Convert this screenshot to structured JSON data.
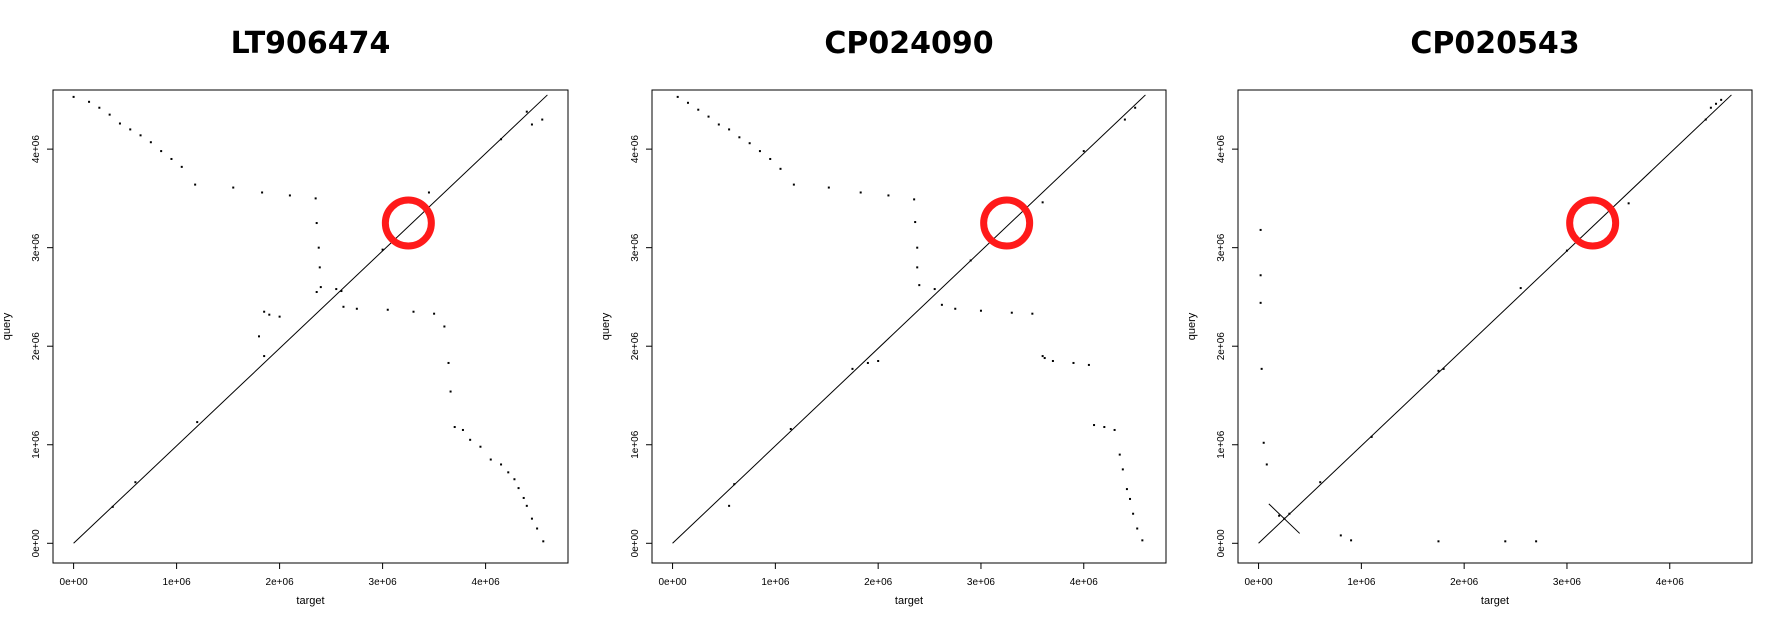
{
  "chart_data": [
    {
      "type": "scatter",
      "title": "LT906474",
      "xlabel": "target",
      "ylabel": "query",
      "xlim": [
        -200000,
        4800000
      ],
      "ylim": [
        -200000,
        4600000
      ],
      "x_ticks": [
        "0e+00",
        "1e+06",
        "2e+06",
        "3e+06",
        "4e+06"
      ],
      "y_ticks": [
        "0e+00",
        "1e+06",
        "2e+06",
        "3e+06",
        "4e+06"
      ],
      "lines": [
        {
          "name": "",
          "x": [
            0,
            4600000
          ],
          "y": [
            0,
            4550000
          ]
        }
      ],
      "points": [
        [
          0,
          4530000
        ],
        [
          150000,
          4480000
        ],
        [
          250000,
          4420000
        ],
        [
          350000,
          4350000
        ],
        [
          450000,
          4260000
        ],
        [
          550000,
          4200000
        ],
        [
          650000,
          4140000
        ],
        [
          750000,
          4070000
        ],
        [
          850000,
          3980000
        ],
        [
          950000,
          3900000
        ],
        [
          1050000,
          3820000
        ],
        [
          1180000,
          3640000
        ],
        [
          1550000,
          3610000
        ],
        [
          1830000,
          3560000
        ],
        [
          2100000,
          3530000
        ],
        [
          2350000,
          3500000
        ],
        [
          2360000,
          3250000
        ],
        [
          2380000,
          3000000
        ],
        [
          2390000,
          2800000
        ],
        [
          2400000,
          2600000
        ],
        [
          2360000,
          2550000
        ],
        [
          2550000,
          2580000
        ],
        [
          2600000,
          2560000
        ],
        [
          2620000,
          2400000
        ],
        [
          2750000,
          2380000
        ],
        [
          3050000,
          2370000
        ],
        [
          3300000,
          2350000
        ],
        [
          3500000,
          2330000
        ],
        [
          3600000,
          2200000
        ],
        [
          3640000,
          1830000
        ],
        [
          3660000,
          1540000
        ],
        [
          3700000,
          1180000
        ],
        [
          3780000,
          1150000
        ],
        [
          3850000,
          1050000
        ],
        [
          3950000,
          980000
        ],
        [
          4050000,
          850000
        ],
        [
          4150000,
          800000
        ],
        [
          4220000,
          720000
        ],
        [
          4280000,
          650000
        ],
        [
          4320000,
          560000
        ],
        [
          4370000,
          460000
        ],
        [
          4400000,
          380000
        ],
        [
          4450000,
          250000
        ],
        [
          4500000,
          150000
        ],
        [
          4560000,
          20000
        ],
        [
          1850000,
          2350000
        ],
        [
          1900000,
          2320000
        ],
        [
          2000000,
          2300000
        ],
        [
          1800000,
          2100000
        ],
        [
          1850000,
          1900000
        ],
        [
          4550000,
          4300000
        ],
        [
          4450000,
          4250000
        ],
        [
          3450000,
          3560000
        ],
        [
          4150000,
          4100000
        ],
        [
          380000,
          370000
        ],
        [
          600000,
          620000
        ],
        [
          1200000,
          1230000
        ],
        [
          3000000,
          2980000
        ],
        [
          4400000,
          4380000
        ]
      ]
    },
    {
      "type": "scatter",
      "title": "CP024090",
      "xlabel": "target",
      "ylabel": "query",
      "xlim": [
        -200000,
        4800000
      ],
      "ylim": [
        -200000,
        4600000
      ],
      "x_ticks": [
        "0e+00",
        "1e+06",
        "2e+06",
        "3e+06",
        "4e+06"
      ],
      "y_ticks": [
        "0e+00",
        "1e+06",
        "2e+06",
        "3e+06",
        "4e+06"
      ],
      "lines": [
        {
          "name": "",
          "x": [
            0,
            4600000
          ],
          "y": [
            0,
            4550000
          ]
        }
      ],
      "points": [
        [
          50000,
          4530000
        ],
        [
          150000,
          4470000
        ],
        [
          250000,
          4400000
        ],
        [
          350000,
          4330000
        ],
        [
          450000,
          4250000
        ],
        [
          550000,
          4200000
        ],
        [
          650000,
          4120000
        ],
        [
          750000,
          4060000
        ],
        [
          850000,
          3980000
        ],
        [
          950000,
          3900000
        ],
        [
          1050000,
          3800000
        ],
        [
          1180000,
          3640000
        ],
        [
          1520000,
          3610000
        ],
        [
          1830000,
          3560000
        ],
        [
          2100000,
          3530000
        ],
        [
          2350000,
          3490000
        ],
        [
          2360000,
          3260000
        ],
        [
          2380000,
          3000000
        ],
        [
          2380000,
          2800000
        ],
        [
          2400000,
          2620000
        ],
        [
          2550000,
          2580000
        ],
        [
          2620000,
          2420000
        ],
        [
          2750000,
          2380000
        ],
        [
          3000000,
          2360000
        ],
        [
          3300000,
          2340000
        ],
        [
          3500000,
          2330000
        ],
        [
          3600000,
          1900000
        ],
        [
          3620000,
          1880000
        ],
        [
          3700000,
          1850000
        ],
        [
          3900000,
          1830000
        ],
        [
          4050000,
          1810000
        ],
        [
          4100000,
          1200000
        ],
        [
          4200000,
          1180000
        ],
        [
          4300000,
          1150000
        ],
        [
          4350000,
          900000
        ],
        [
          4380000,
          750000
        ],
        [
          4420000,
          550000
        ],
        [
          4450000,
          450000
        ],
        [
          4480000,
          300000
        ],
        [
          4520000,
          150000
        ],
        [
          4570000,
          30000
        ],
        [
          1900000,
          1830000
        ],
        [
          2000000,
          1850000
        ],
        [
          1750000,
          1770000
        ],
        [
          550000,
          380000
        ],
        [
          600000,
          600000
        ],
        [
          1150000,
          1160000
        ],
        [
          3600000,
          3460000
        ],
        [
          4500000,
          4420000
        ],
        [
          4400000,
          4300000
        ],
        [
          2900000,
          2870000
        ],
        [
          3100000,
          3080000
        ],
        [
          4000000,
          3980000
        ]
      ]
    },
    {
      "type": "scatter",
      "title": "CP020543",
      "xlabel": "target",
      "ylabel": "query",
      "xlim": [
        -200000,
        4800000
      ],
      "ylim": [
        -200000,
        4600000
      ],
      "x_ticks": [
        "0e+00",
        "1e+06",
        "2e+06",
        "3e+06",
        "4e+06"
      ],
      "y_ticks": [
        "0e+00",
        "1e+06",
        "2e+06",
        "3e+06",
        "4e+06"
      ],
      "lines": [
        {
          "name": "",
          "x": [
            0,
            4600000
          ],
          "y": [
            0,
            4550000
          ]
        },
        {
          "name": "",
          "x": [
            100000,
            400000
          ],
          "y": [
            400000,
            100000
          ]
        }
      ],
      "points": [
        [
          20000,
          3180000
        ],
        [
          20000,
          2720000
        ],
        [
          20000,
          2440000
        ],
        [
          30000,
          1770000
        ],
        [
          50000,
          1020000
        ],
        [
          80000,
          800000
        ],
        [
          200000,
          280000
        ],
        [
          250000,
          250000
        ],
        [
          300000,
          300000
        ],
        [
          800000,
          80000
        ],
        [
          900000,
          30000
        ],
        [
          1750000,
          20000
        ],
        [
          2400000,
          20000
        ],
        [
          2700000,
          20000
        ],
        [
          2550000,
          2590000
        ],
        [
          1750000,
          1750000
        ],
        [
          1800000,
          1770000
        ],
        [
          4400000,
          4420000
        ],
        [
          4450000,
          4460000
        ],
        [
          4500000,
          4500000
        ],
        [
          4350000,
          4300000
        ],
        [
          3600000,
          3450000
        ],
        [
          1100000,
          1080000
        ],
        [
          600000,
          620000
        ],
        [
          3000000,
          2970000
        ]
      ]
    }
  ],
  "highlight": {
    "shape": "circle",
    "color": "#ff1a1a",
    "center": [
      3250000,
      3250000
    ]
  },
  "colors": {
    "line": "#000000",
    "frame": "#000000",
    "highlight": "#ff1a1a"
  }
}
